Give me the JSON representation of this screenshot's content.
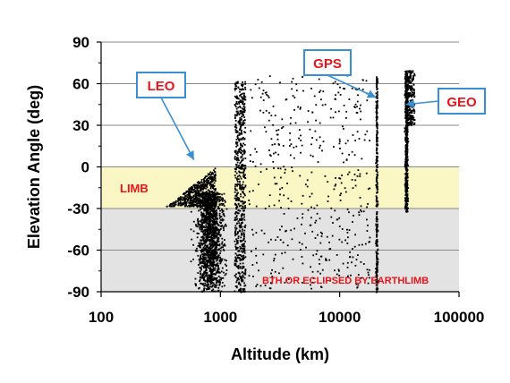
{
  "chart_data": {
    "type": "scatter",
    "xlabel": "Altitude (km)",
    "ylabel": "Elevation Angle (deg)",
    "xscale": "log",
    "xlim": [
      100,
      100000
    ],
    "ylim": [
      -90,
      90
    ],
    "xticks": [
      100,
      1000,
      10000,
      100000
    ],
    "xtick_labels": [
      "100",
      "1000",
      "10000",
      "100000"
    ],
    "yticks": [
      90,
      60,
      30,
      0,
      -30,
      -60,
      -90
    ],
    "ytick_labels": [
      "90",
      "60",
      "30",
      "0",
      "-30",
      "-60",
      "-90"
    ],
    "grid": "horizontal",
    "regions": [
      {
        "label": "LIMB",
        "y_range": [
          -30,
          0
        ],
        "color": "#fbf7c5"
      },
      {
        "label": "BTH OR ECLIPSED BY EARTHLIMB",
        "y_range": [
          -90,
          -30
        ],
        "color": "#e3e3e3"
      }
    ],
    "callouts": [
      {
        "label": "LEO",
        "points_to": {
          "x": 600,
          "y": 5
        }
      },
      {
        "label": "GPS",
        "points_to": {
          "x": 20200,
          "y": 50
        }
      },
      {
        "label": "GEO",
        "points_to": {
          "x": 35786,
          "y": 45
        }
      }
    ],
    "point_color": "#000000",
    "clusters": [
      {
        "name_hint": "leo-limb-wedge",
        "x_range": [
          350,
          900
        ],
        "y_range": [
          -28,
          0
        ],
        "count": 550
      },
      {
        "name_hint": "leo-dense-band",
        "x_range": [
          550,
          1200
        ],
        "y_range": [
          -90,
          -18
        ],
        "count": 1400
      },
      {
        "name_hint": "leo-high-band",
        "x_range": [
          1300,
          1600
        ],
        "y_range": [
          -90,
          62
        ],
        "count": 650
      },
      {
        "name_hint": "meo-scatter",
        "x_range": [
          1700,
          18000
        ],
        "y_range": [
          -88,
          68
        ],
        "count": 450
      },
      {
        "name_hint": "gps-shell",
        "x_range": [
          19000,
          21000
        ],
        "y_range": [
          -90,
          66
        ],
        "count": 330
      },
      {
        "name_hint": "geo-belt",
        "x_range": [
          33000,
          39000
        ],
        "y_range": [
          -32,
          70
        ],
        "count": 520
      },
      {
        "name_hint": "geo-upper",
        "x_range": [
          35000,
          42000
        ],
        "y_range": [
          30,
          70
        ],
        "count": 260
      }
    ]
  }
}
